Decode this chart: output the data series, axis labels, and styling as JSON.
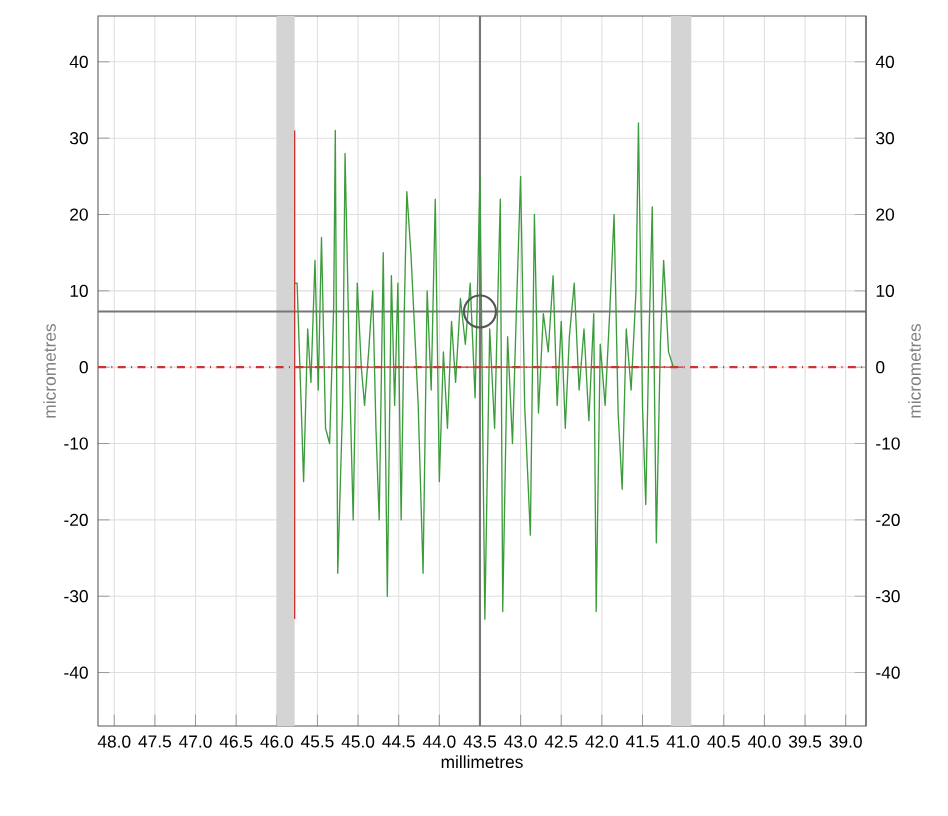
{
  "chart_data": {
    "type": "line",
    "xlabel": "millimetres",
    "ylabel": "micrometres",
    "y2label": "micrometres",
    "xlim": [
      48.2,
      38.75
    ],
    "ylim": [
      -47,
      46
    ],
    "y2lim": [
      -47,
      46
    ],
    "xticks": [
      {
        "value": 48,
        "label": "48.0"
      },
      {
        "value": 47.5,
        "label": "47.5"
      },
      {
        "value": 47,
        "label": "47.0"
      },
      {
        "value": 46.5,
        "label": "46.5"
      },
      {
        "value": 46,
        "label": "46.0"
      },
      {
        "value": 45.5,
        "label": "45.5"
      },
      {
        "value": 45,
        "label": "45.0"
      },
      {
        "value": 44.5,
        "label": "44.5"
      },
      {
        "value": 44,
        "label": "44.0"
      },
      {
        "value": 43.5,
        "label": "43.5"
      },
      {
        "value": 43,
        "label": "43.0"
      },
      {
        "value": 42.5,
        "label": "42.5"
      },
      {
        "value": 42,
        "label": "42.0"
      },
      {
        "value": 41.5,
        "label": "41.5"
      },
      {
        "value": 41,
        "label": "41.0"
      },
      {
        "value": 40.5,
        "label": "40.5"
      },
      {
        "value": 40,
        "label": "40.0"
      },
      {
        "value": 39.5,
        "label": "39.5"
      },
      {
        "value": 39,
        "label": "39.0"
      }
    ],
    "yticks": [
      -40,
      -30,
      -20,
      -10,
      0,
      10,
      20,
      30,
      40
    ],
    "y2ticks": [
      -40,
      -30,
      -20,
      -10,
      0,
      10,
      20,
      30,
      40
    ],
    "grid": true,
    "series": [
      {
        "color": "#3c9c3c",
        "x": [
          45.78,
          45.75,
          45.7,
          45.67,
          45.62,
          45.58,
          45.53,
          45.49,
          45.45,
          45.4,
          45.35,
          45.3,
          45.28,
          45.25,
          45.19,
          45.16,
          45.1,
          45.06,
          45.01,
          44.96,
          44.92,
          44.87,
          44.82,
          44.78,
          44.74,
          44.69,
          44.64,
          44.59,
          44.55,
          44.51,
          44.47,
          44.43,
          44.4,
          44.35,
          44.3,
          44.26,
          44.2,
          44.15,
          44.1,
          44.05,
          44.0,
          43.95,
          43.9,
          43.85,
          43.8,
          43.74,
          43.68,
          43.62,
          43.56,
          43.5,
          43.44,
          43.38,
          43.32,
          43.25,
          43.22,
          43.16,
          43.1,
          43.05,
          43.0,
          42.95,
          42.88,
          42.83,
          42.78,
          42.72,
          42.66,
          42.6,
          42.55,
          42.5,
          42.45,
          42.4,
          42.34,
          42.28,
          42.22,
          42.16,
          42.1,
          42.07,
          42.02,
          41.96,
          41.9,
          41.85,
          41.8,
          41.75,
          41.7,
          41.64,
          41.58,
          41.55,
          41.5,
          41.46,
          41.42,
          41.38,
          41.33,
          41.28,
          41.24,
          41.18,
          41.12
        ],
        "values": [
          11,
          11,
          -5,
          -15,
          5,
          -2,
          14,
          -3,
          17,
          -8,
          -10,
          8,
          31,
          -27,
          -5,
          28,
          -3,
          -20,
          11,
          0,
          -5,
          2,
          10,
          -8,
          -20,
          15,
          -30,
          12,
          -5,
          11,
          -20,
          8,
          23,
          15,
          4,
          -5,
          -27,
          10,
          -3,
          22,
          -15,
          2,
          -8,
          6,
          -2,
          9,
          3,
          11,
          -4,
          25,
          -33,
          5,
          -8,
          22,
          -32,
          4,
          -10,
          8,
          25,
          -5,
          -22,
          20,
          -6,
          7,
          2,
          12,
          -5,
          6,
          -8,
          4,
          11,
          -3,
          5,
          -7,
          7,
          -32,
          3,
          -5,
          8,
          20,
          -6,
          -16,
          5,
          -3,
          10,
          32,
          -5,
          -18,
          4,
          21,
          -23,
          3,
          14,
          2,
          0
        ]
      },
      {
        "type": "line",
        "color": "#cc3333",
        "x": [
          45.78,
          45.78
        ],
        "values": [
          31,
          -33
        ]
      },
      {
        "type": "line",
        "color": "#cc3333",
        "x": [
          45.77,
          41.0
        ],
        "values": [
          0,
          0
        ]
      },
      {
        "type": "scatter",
        "color": "#555555",
        "marker": "circle",
        "x": [
          43.5
        ],
        "values": [
          7.3
        ]
      }
    ],
    "ref_lines": [
      {
        "axis": "y",
        "value": 7.3,
        "color": "#777777",
        "line_style": "solid"
      },
      {
        "axis": "x",
        "value": 43.5,
        "color": "#777777",
        "line_style": "solid"
      },
      {
        "axis": "y",
        "value": 0,
        "color": "#cc3333",
        "line_style": "dashdot"
      }
    ],
    "bands": [
      {
        "axis": "x",
        "from": 46.0,
        "to": 45.78,
        "color": "#d4d4d4"
      },
      {
        "axis": "x",
        "from": 41.15,
        "to": 40.9,
        "color": "#d4d4d4"
      }
    ]
  }
}
